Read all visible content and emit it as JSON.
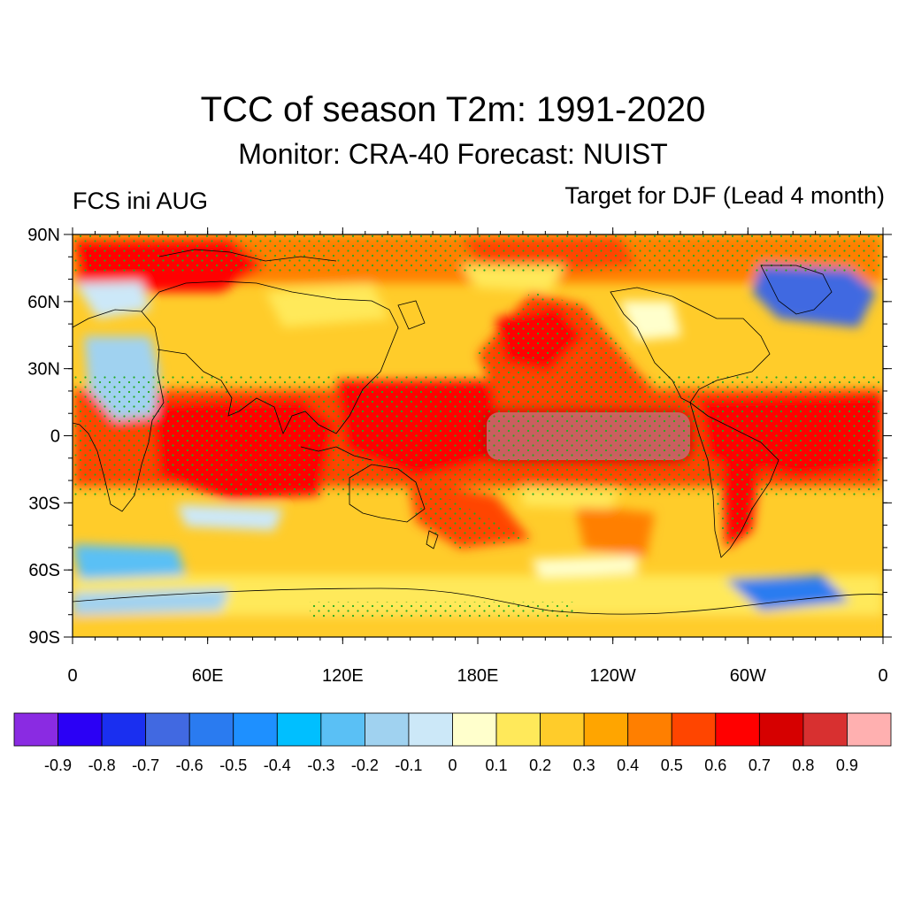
{
  "figure": {
    "title": "TCC of season T2m: 1991-2020",
    "subtitle": "Monitor: CRA-40   Forecast: NUIST",
    "left_string": "FCS ini AUG",
    "right_string": "Target for DJF (Lead 4 month)"
  },
  "map": {
    "projection": "cylindrical-equidistant",
    "lon_range": [
      0,
      360
    ],
    "lat_range": [
      -90,
      90
    ],
    "x_tick_labels": [
      "0",
      "60E",
      "120E",
      "180E",
      "120W",
      "60W",
      "0"
    ],
    "y_tick_labels": [
      "90N",
      "60N",
      "30N",
      "0",
      "30S",
      "60S",
      "90S"
    ],
    "stippling_color": "#22aa22",
    "coastline_color": "#000000"
  },
  "colorbar": {
    "labels": [
      "-0.9",
      "-0.8",
      "-0.7",
      "-0.6",
      "-0.5",
      "-0.4",
      "-0.3",
      "-0.2",
      "-0.1",
      "0",
      "0.1",
      "0.2",
      "0.3",
      "0.4",
      "0.5",
      "0.6",
      "0.7",
      "0.8",
      "0.9"
    ],
    "colors": [
      "#8a2be2",
      "#2b00f5",
      "#1a2ff0",
      "#4169e1",
      "#2a7bf0",
      "#1e90ff",
      "#00bfff",
      "#5ac0f5",
      "#a0d2f0",
      "#cce8f8",
      "#ffffcc",
      "#ffe95a",
      "#ffcc2a",
      "#ffa500",
      "#ff7f00",
      "#ff4500",
      "#ff0000",
      "#d60000",
      "#d83030",
      "#ffb0b0"
    ]
  }
}
